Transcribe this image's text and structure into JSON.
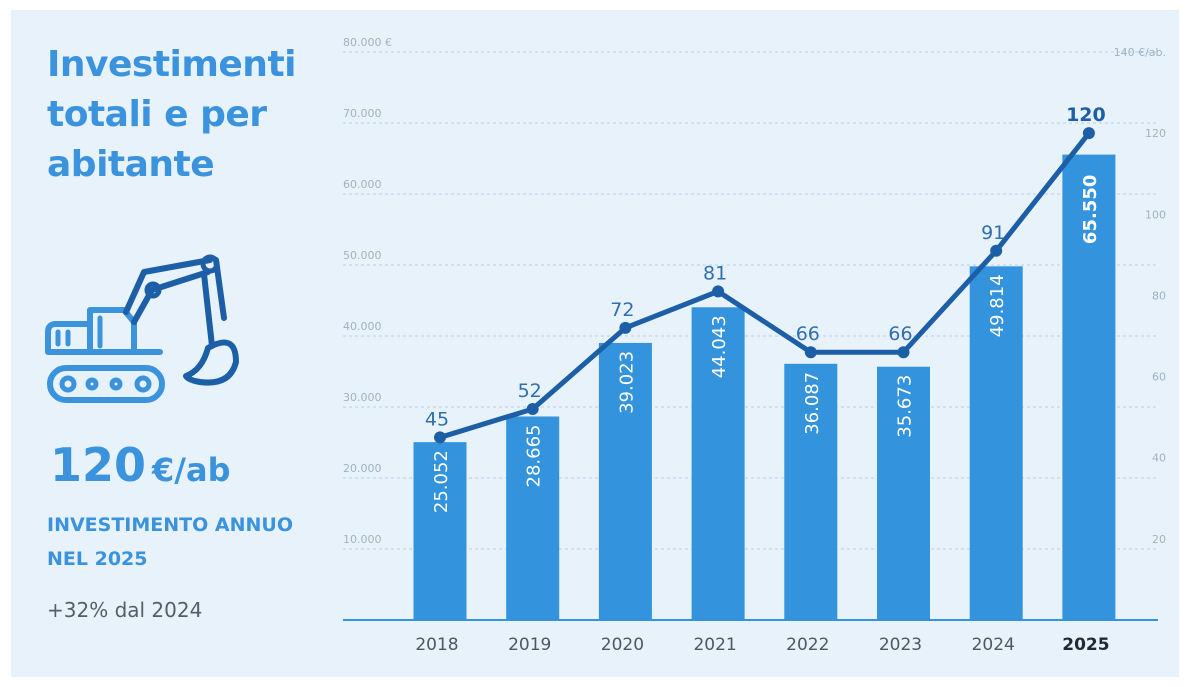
{
  "title": "Investimenti totali e per abitante",
  "kpi": {
    "value": "120",
    "unit": "€/ab",
    "caption": "INVESTIMENTO ANNUO NEL 2025",
    "delta": "+32% dal 2024"
  },
  "icon": "excavator-icon",
  "colors": {
    "panel_bg": "#e8f2fb",
    "bar": "#3393dd",
    "line": "#1c5fa6",
    "accent_text": "#3a93dc",
    "axis_text": "#9fb2c2"
  },
  "chart_data": {
    "type": "bar",
    "categories": [
      "2018",
      "2019",
      "2020",
      "2021",
      "2022",
      "2023",
      "2024",
      "2025"
    ],
    "highlight_category": "2025",
    "series": [
      {
        "type": "bar",
        "axis": "left",
        "values": [
          25052,
          28665,
          39023,
          44043,
          36087,
          35673,
          49814,
          65550
        ],
        "labels": [
          "25.052",
          "28.665",
          "39.023",
          "44.043",
          "36.087",
          "35.673",
          "49.814",
          "65.550"
        ]
      },
      {
        "type": "line",
        "axis": "right",
        "values": [
          45,
          52,
          72,
          81,
          66,
          66,
          91,
          120
        ],
        "labels": [
          "45",
          "52",
          "72",
          "81",
          "66",
          "66",
          "91",
          "120"
        ]
      }
    ],
    "y_left": {
      "range": [
        0,
        80000
      ],
      "ticks": [
        10000,
        20000,
        30000,
        40000,
        50000,
        60000,
        70000,
        80000
      ],
      "tick_labels": [
        "10.000",
        "20.000",
        "30.000",
        "40.000",
        "50.000",
        "60.000",
        "70.000",
        "80.000 €"
      ]
    },
    "y_right": {
      "range": [
        0,
        140
      ],
      "ticks": [
        20,
        40,
        60,
        80,
        100,
        120,
        140
      ],
      "tick_labels": [
        "20",
        "40",
        "60",
        "80",
        "100",
        "120",
        "140 €/ab."
      ]
    },
    "grid": true
  }
}
